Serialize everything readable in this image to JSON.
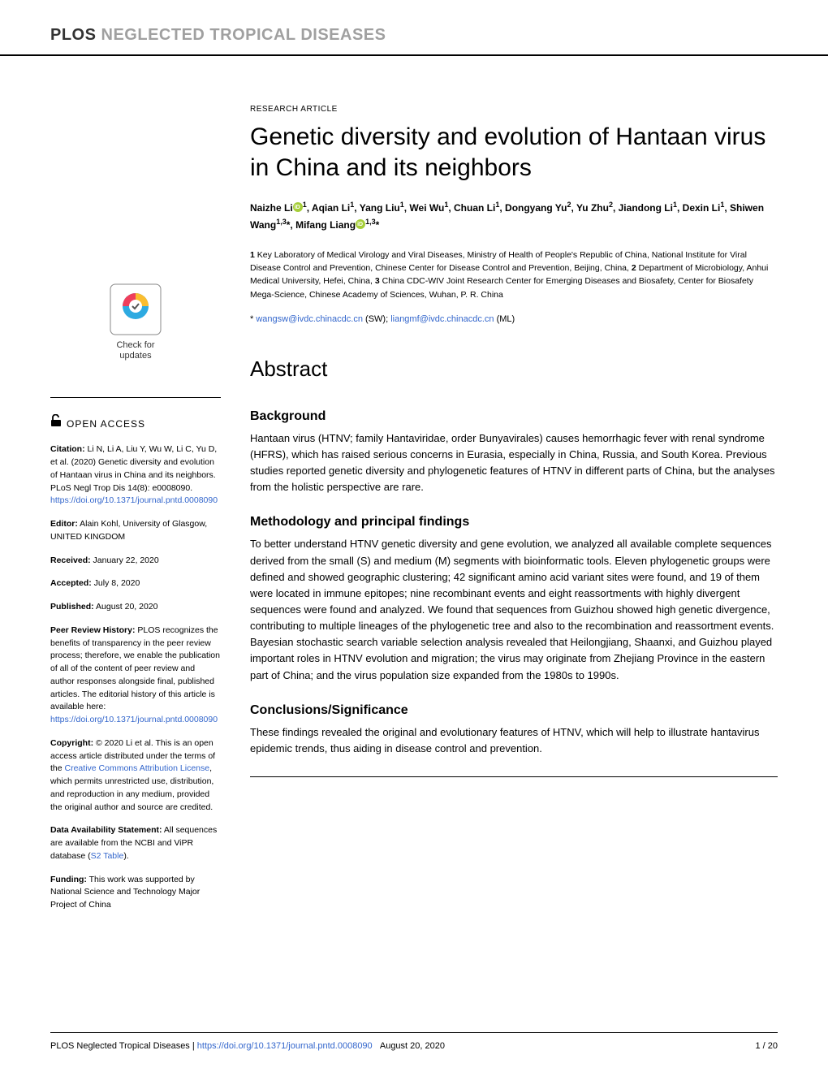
{
  "journal": {
    "plos": "PLOS",
    "ntd": "NEGLECTED TROPICAL DISEASES"
  },
  "article": {
    "type": "RESEARCH ARTICLE",
    "title": "Genetic diversity and evolution of Hantaan virus in China and its neighbors",
    "authors_html": "Naizhe Li<span class='orcid-icon' data-name='orcid-icon' data-interactable='false'></span><sup>1</sup>, Aqian Li<sup>1</sup>, Yang Liu<sup>1</sup>, Wei Wu<sup>1</sup>, Chuan Li<sup>1</sup>, Dongyang Yu<sup>2</sup>, Yu Zhu<sup>2</sup>, Jiandong Li<sup>1</sup>, Dexin Li<sup>1</sup>, Shiwen Wang<sup>1,3</sup>*, Mifang Liang<span class='orcid-icon' data-name='orcid-icon' data-interactable='false'></span><sup>1,3</sup>*",
    "affiliations_html": "<b>1</b> Key Laboratory of Medical Virology and Viral Diseases, Ministry of Health of People's Republic of China, National Institute for Viral Disease Control and Prevention, Chinese Center for Disease Control and Prevention, Beijing, China, <b>2</b> Department of Microbiology, Anhui Medical University, Hefei, China, <b>3</b> China CDC-WIV Joint Research Center for Emerging Diseases and Biosafety, Center for Biosafety Mega-Science, Chinese Academy of Sciences, Wuhan, P. R. China",
    "corr_prefix": "* ",
    "corr_email1": "wangsw@ivdc.chinacdc.cn",
    "corr_sep1": " (SW); ",
    "corr_email2": "liangmf@ivdc.chinacdc.cn",
    "corr_suffix": " (ML)"
  },
  "abstract": {
    "heading": "Abstract",
    "sections": {
      "background": {
        "heading": "Background",
        "body": "Hantaan virus (HTNV; family Hantaviridae, order Bunyavirales) causes hemorrhagic fever with renal syndrome (HFRS), which has raised serious concerns in Eurasia, especially in China, Russia, and South Korea. Previous studies reported genetic diversity and phylogenetic features of HTNV in different parts of China, but the analyses from the holistic perspective are rare."
      },
      "methods": {
        "heading": "Methodology and principal findings",
        "body": "To better understand HTNV genetic diversity and gene evolution, we analyzed all available complete sequences derived from the small (S) and medium (M) segments with bioinformatic tools. Eleven phylogenetic groups were defined and showed geographic clustering; 42 significant amino acid variant sites were found, and 19 of them were located in immune epitopes; nine recombinant events and eight reassortments with highly divergent sequences were found and analyzed. We found that sequences from Guizhou showed high genetic divergence, contributing to multiple lineages of the phylogenetic tree and also to the recombination and reassortment events. Bayesian stochastic search variable selection analysis revealed that Heilongjiang, Shaanxi, and Guizhou played important roles in HTNV evolution and migration; the virus may originate from Zhejiang Province in the eastern part of China; and the virus population size expanded from the 1980s to 1990s."
      },
      "conclusions": {
        "heading": "Conclusions/Significance",
        "body": "These findings revealed the original and evolutionary features of HTNV, which will help to illustrate hantavirus epidemic trends, thus aiding in disease control and prevention."
      }
    }
  },
  "sidebar": {
    "check_updates": {
      "line1": "Check for",
      "line2": "updates"
    },
    "open_access": "OPEN ACCESS",
    "citation": {
      "label": "Citation:",
      "text": " Li N, Li A, Liu Y, Wu W, Li C, Yu D, et al. (2020) Genetic diversity and evolution of Hantaan virus in China and its neighbors. PLoS Negl Trop Dis 14(8): e0008090. ",
      "link": "https://doi.org/10.1371/journal.pntd.0008090"
    },
    "editor": {
      "label": "Editor:",
      "text": " Alain Kohl, University of Glasgow, UNITED KINGDOM"
    },
    "received": {
      "label": "Received:",
      "text": " January 22, 2020"
    },
    "accepted": {
      "label": "Accepted:",
      "text": " July 8, 2020"
    },
    "published": {
      "label": "Published:",
      "text": " August 20, 2020"
    },
    "peer_review": {
      "label": "Peer Review History:",
      "text": " PLOS recognizes the benefits of transparency in the peer review process; therefore, we enable the publication of all of the content of peer review and author responses alongside final, published articles. The editorial history of this article is available here: ",
      "link": "https://doi.org/10.1371/journal.pntd.0008090"
    },
    "copyright": {
      "label": "Copyright:",
      "text1": " © 2020 Li et al. This is an open access article distributed under the terms of the ",
      "link": "Creative Commons Attribution License",
      "text2": ", which permits unrestricted use, distribution, and reproduction in any medium, provided the original author and source are credited."
    },
    "data_avail": {
      "label": "Data Availability Statement:",
      "text1": " All sequences are available from the NCBI and ViPR database (",
      "link": "S2 Table",
      "text2": ")."
    },
    "funding": {
      "label": "Funding:",
      "text": " This work was supported by National Science and Technology Major Project of China"
    }
  },
  "footer": {
    "journal": "PLOS Neglected Tropical Diseases | ",
    "doi": "https://doi.org/10.1371/journal.pntd.0008090",
    "date": "August 20, 2020",
    "page": "1 / 20"
  },
  "colors": {
    "link": "#3366cc",
    "orcid": "#a6ce39",
    "cu_ring1": "#ef3e5b",
    "cu_ring2": "#fabd2f",
    "cu_ring3": "#2daae1"
  }
}
